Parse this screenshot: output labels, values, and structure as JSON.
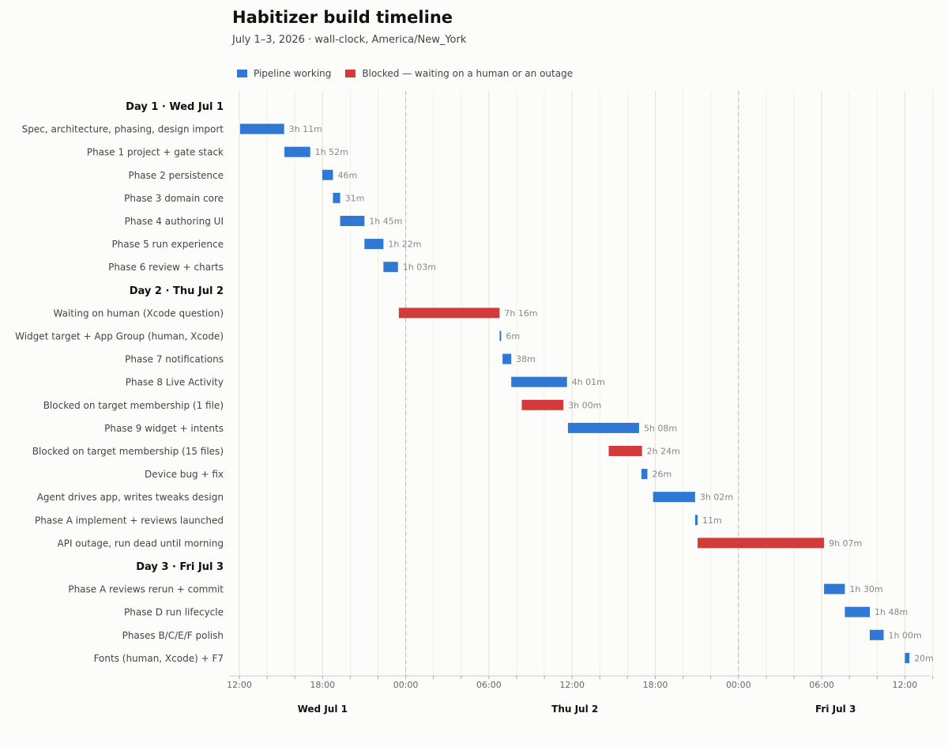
{
  "title": "Habitizer build timeline",
  "subtitle": "July 1–3, 2026  ·  wall-clock, America/New_York",
  "colors": {
    "working": "#2f78d4",
    "blocked": "#d13b3b"
  },
  "legend": [
    {
      "key": "working",
      "label": "Pipeline working"
    },
    {
      "key": "blocked",
      "label": "Blocked — waiting on a human or an outage"
    }
  ],
  "chart_data": {
    "type": "bar",
    "orientation": "horizontal-gantt",
    "x_unit": "hours since 2026-07-01 00:00 America/New_York",
    "xlim": [
      12,
      84.5
    ],
    "x_ticks": [
      {
        "hour": 12,
        "label": "12:00"
      },
      {
        "hour": 18,
        "label": "18:00"
      },
      {
        "hour": 24,
        "label": "00:00"
      },
      {
        "hour": 30,
        "label": "06:00"
      },
      {
        "hour": 36,
        "label": "12:00"
      },
      {
        "hour": 42,
        "label": "18:00"
      },
      {
        "hour": 48,
        "label": "00:00"
      },
      {
        "hour": 54,
        "label": "06:00"
      },
      {
        "hour": 60,
        "label": "12:00"
      }
    ],
    "midnights": [
      24,
      48
    ],
    "day_labels": [
      {
        "hour": 18,
        "label": "Wed Jul 1"
      },
      {
        "hour": 36.2,
        "label": "Thu Jul 2"
      },
      {
        "hour": 55,
        "label": "Fri Jul 3"
      }
    ],
    "rows": [
      {
        "type": "header",
        "label": "Day 1  ·  Wed Jul 1"
      },
      {
        "label": "Spec, architecture, phasing, design import",
        "start": 12.05,
        "end": 15.23,
        "status": "working",
        "duration": "3h 11m"
      },
      {
        "label": "Phase 1  project + gate stack",
        "start": 15.25,
        "end": 17.11,
        "status": "working",
        "duration": "1h 52m"
      },
      {
        "label": "Phase 2  persistence",
        "start": 17.98,
        "end": 18.75,
        "status": "working",
        "duration": "46m"
      },
      {
        "label": "Phase 3  domain core",
        "start": 18.75,
        "end": 19.27,
        "status": "working",
        "duration": "31m"
      },
      {
        "label": "Phase 4  authoring UI",
        "start": 19.27,
        "end": 21.02,
        "status": "working",
        "duration": "1h 45m"
      },
      {
        "label": "Phase 5  run experience",
        "start": 21.02,
        "end": 22.39,
        "status": "working",
        "duration": "1h 22m"
      },
      {
        "label": "Phase 6  review + charts",
        "start": 22.39,
        "end": 23.44,
        "status": "working",
        "duration": "1h 03m"
      },
      {
        "type": "header",
        "label": "Day 2  ·  Thu Jul 2"
      },
      {
        "label": "Waiting on human (Xcode question)",
        "start": 23.5,
        "end": 30.77,
        "status": "blocked",
        "duration": "7h 16m"
      },
      {
        "label": "Widget target + App Group (human, Xcode)",
        "start": 30.77,
        "end": 30.87,
        "status": "working",
        "duration": "6m"
      },
      {
        "label": "Phase 7  notifications",
        "start": 30.98,
        "end": 31.61,
        "status": "working",
        "duration": "38m"
      },
      {
        "label": "Phase 8  Live Activity",
        "start": 31.61,
        "end": 35.63,
        "status": "working",
        "duration": "4h 01m"
      },
      {
        "label": "Blocked on target membership (1 file)",
        "start": 32.37,
        "end": 35.37,
        "status": "blocked",
        "duration": "3h 00m"
      },
      {
        "label": "Phase 9  widget + intents",
        "start": 35.7,
        "end": 40.83,
        "status": "working",
        "duration": "5h 08m"
      },
      {
        "label": "Blocked on target membership (15 files)",
        "start": 38.64,
        "end": 41.04,
        "status": "blocked",
        "duration": "2h 24m"
      },
      {
        "label": "Device bug + fix",
        "start": 41.0,
        "end": 41.43,
        "status": "working",
        "duration": "26m"
      },
      {
        "label": "Agent drives app, writes tweaks design",
        "start": 41.84,
        "end": 44.87,
        "status": "working",
        "duration": "3h 02m"
      },
      {
        "label": "Phase A  implement + reviews launched",
        "start": 44.87,
        "end": 45.05,
        "status": "working",
        "duration": "11m"
      },
      {
        "label": "API outage, run dead until morning",
        "start": 45.05,
        "end": 54.17,
        "status": "blocked",
        "duration": "9h 07m"
      },
      {
        "type": "header",
        "label": "Day 3  ·  Fri Jul 3"
      },
      {
        "label": "Phase A  reviews rerun + commit",
        "start": 54.17,
        "end": 55.67,
        "status": "working",
        "duration": "1h 30m"
      },
      {
        "label": "Phase D  run lifecycle",
        "start": 55.67,
        "end": 57.47,
        "status": "working",
        "duration": "1h 48m"
      },
      {
        "label": "Phases B/C/E/F  polish",
        "start": 57.47,
        "end": 58.47,
        "status": "working",
        "duration": "1h 00m"
      },
      {
        "label": "Fonts (human, Xcode) + F7",
        "start": 60.0,
        "end": 60.33,
        "status": "working",
        "duration": "20m"
      }
    ]
  }
}
